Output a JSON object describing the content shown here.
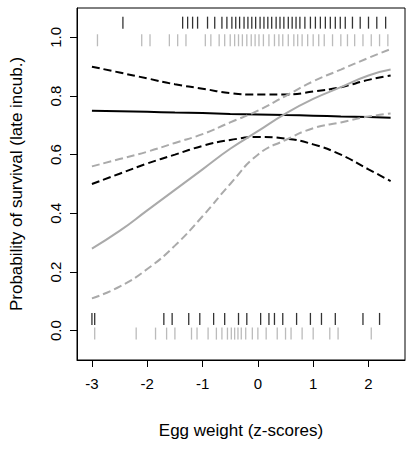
{
  "chart_data": {
    "type": "line",
    "x_label": "Egg weight (z-scores)",
    "y_label": "Probability of survival (late incub.)",
    "xlim": [
      -3.27,
      2.66
    ],
    "xticks": [
      -3,
      -2,
      -1,
      0,
      1,
      2
    ],
    "ylim": [
      -0.1,
      1.1
    ],
    "yticks": [
      {
        "value": 0,
        "label": "0.0"
      },
      {
        "value": 0.2,
        "label": "0.2"
      },
      {
        "value": 0.4,
        "label": "0.4"
      },
      {
        "value": 0.6,
        "label": "0.6"
      },
      {
        "value": 0.8,
        "label": "0.8"
      },
      {
        "value": 1,
        "label": "1.0"
      }
    ],
    "grid": false,
    "series": [
      {
        "type": "line",
        "color": "#000000",
        "line_style": "solid",
        "x": [
          -3,
          -2.5,
          -2,
          -1.5,
          -1,
          -0.5,
          0,
          0.5,
          1,
          1.5,
          2,
          2.4
        ],
        "values": [
          0.75,
          0.748,
          0.746,
          0.744,
          0.742,
          0.739,
          0.737,
          0.735,
          0.733,
          0.73,
          0.728,
          0.726
        ]
      },
      {
        "type": "line",
        "color": "#000000",
        "line_style": "dashed",
        "x": [
          -3,
          -2.5,
          -2,
          -1.5,
          -1,
          -0.5,
          0,
          0.5,
          1,
          1.5,
          2,
          2.4
        ],
        "values": [
          0.9,
          0.88,
          0.86,
          0.84,
          0.825,
          0.81,
          0.805,
          0.805,
          0.815,
          0.83,
          0.855,
          0.87
        ]
      },
      {
        "type": "line",
        "color": "#000000",
        "line_style": "dashed",
        "x": [
          -3,
          -2.5,
          -2,
          -1.5,
          -1,
          -0.5,
          0,
          0.5,
          1,
          1.5,
          2,
          2.4
        ],
        "values": [
          0.5,
          0.535,
          0.57,
          0.6,
          0.63,
          0.65,
          0.66,
          0.655,
          0.635,
          0.6,
          0.55,
          0.51
        ]
      },
      {
        "type": "line",
        "color": "#aaaaaa",
        "line_style": "solid",
        "x": [
          -3,
          -2.5,
          -2,
          -1.5,
          -1,
          -0.5,
          0,
          0.5,
          1,
          1.5,
          2,
          2.4
        ],
        "values": [
          0.28,
          0.34,
          0.41,
          0.48,
          0.55,
          0.62,
          0.68,
          0.74,
          0.79,
          0.83,
          0.87,
          0.89
        ]
      },
      {
        "type": "line",
        "color": "#aaaaaa",
        "line_style": "dashed",
        "x": [
          -3,
          -2.5,
          -2,
          -1.5,
          -1,
          -0.5,
          0,
          0.5,
          1,
          1.5,
          2,
          2.4
        ],
        "values": [
          0.56,
          0.585,
          0.61,
          0.64,
          0.67,
          0.71,
          0.75,
          0.8,
          0.85,
          0.89,
          0.93,
          0.96
        ]
      },
      {
        "type": "line",
        "color": "#aaaaaa",
        "line_style": "dashed",
        "x": [
          -3,
          -2.5,
          -2,
          -1.5,
          -1,
          -0.5,
          0,
          0.5,
          1,
          1.5,
          2,
          2.4
        ],
        "values": [
          0.11,
          0.15,
          0.21,
          0.29,
          0.39,
          0.5,
          0.6,
          0.65,
          0.69,
          0.71,
          0.73,
          0.74
        ]
      },
      {
        "type": "scatter",
        "color": "#000000",
        "marker": "vline",
        "x": [
          -2.44,
          -1.36,
          -1.27,
          -1.18,
          -1.09,
          -0.91,
          -0.78,
          -0.65,
          -0.56,
          -0.47,
          -0.4,
          -0.33,
          -0.25,
          -0.18,
          -0.11,
          -0.04,
          0.04,
          0.11,
          0.18,
          0.25,
          0.33,
          0.4,
          0.47,
          0.55,
          0.62,
          0.69,
          0.76,
          0.85,
          0.95,
          1.04,
          1.13,
          1.22,
          1.31,
          1.4,
          1.49,
          1.58,
          1.71,
          1.85,
          2.0,
          2.15,
          2.31
        ],
        "values": [
          1.05,
          1.05,
          1.05,
          1.05,
          1.05,
          1.05,
          1.05,
          1.05,
          1.05,
          1.05,
          1.05,
          1.05,
          1.05,
          1.05,
          1.05,
          1.05,
          1.05,
          1.05,
          1.05,
          1.05,
          1.05,
          1.05,
          1.05,
          1.05,
          1.05,
          1.05,
          1.05,
          1.05,
          1.05,
          1.05,
          1.05,
          1.05,
          1.05,
          1.05,
          1.05,
          1.05,
          1.05,
          1.05,
          1.05,
          1.05,
          1.05
        ]
      },
      {
        "type": "scatter",
        "color": "#aaaaaa",
        "marker": "vline",
        "x": [
          -2.9,
          -2.1,
          -1.95,
          -1.6,
          -1.45,
          -1.3,
          -0.95,
          -0.85,
          -0.7,
          -0.6,
          -0.5,
          -0.42,
          -0.35,
          -0.28,
          -0.2,
          -0.12,
          -0.05,
          0.02,
          0.1,
          0.2,
          0.3,
          0.38,
          0.45,
          0.55,
          0.65,
          0.72,
          0.8,
          0.9,
          1.0,
          1.1,
          1.2,
          1.35,
          1.5,
          1.62,
          1.75,
          1.9,
          2.05,
          2.2,
          2.35
        ],
        "values": [
          0.99,
          0.99,
          0.99,
          0.99,
          0.99,
          0.99,
          0.99,
          0.99,
          0.99,
          0.99,
          0.99,
          0.99,
          0.99,
          0.99,
          0.99,
          0.99,
          0.99,
          0.99,
          0.99,
          0.99,
          0.99,
          0.99,
          0.99,
          0.99,
          0.99,
          0.99,
          0.99,
          0.99,
          0.99,
          0.99,
          0.99,
          0.99,
          0.99,
          0.99,
          0.99,
          0.99,
          0.99,
          0.99,
          0.99
        ]
      },
      {
        "type": "scatter",
        "color": "#000000",
        "marker": "vline",
        "x": [
          -3.0,
          -2.95,
          -1.7,
          -1.55,
          -1.25,
          -1.05,
          -0.8,
          -0.6,
          -0.35,
          -0.2,
          0.05,
          0.2,
          0.3,
          0.45,
          0.7,
          0.95,
          1.15,
          1.4,
          1.9,
          2.2
        ],
        "values": [
          0.04,
          0.04,
          0.04,
          0.04,
          0.04,
          0.04,
          0.04,
          0.04,
          0.04,
          0.04,
          0.04,
          0.04,
          0.04,
          0.04,
          0.04,
          0.04,
          0.04,
          0.04,
          0.04,
          0.04
        ]
      },
      {
        "type": "scatter",
        "color": "#aaaaaa",
        "marker": "vline",
        "x": [
          -2.95,
          -2.2,
          -1.85,
          -1.65,
          -1.5,
          -1.2,
          -1.1,
          -0.9,
          -0.75,
          -0.65,
          -0.55,
          -0.48,
          -0.42,
          -0.36,
          -0.3,
          -0.22,
          -0.1,
          0.0,
          0.15,
          0.35,
          0.5,
          0.6,
          0.8,
          1.0,
          1.3,
          1.45,
          2.05
        ],
        "values": [
          -0.01,
          -0.01,
          -0.01,
          -0.01,
          -0.01,
          -0.01,
          -0.01,
          -0.01,
          -0.01,
          -0.01,
          -0.01,
          -0.01,
          -0.01,
          -0.01,
          -0.01,
          -0.01,
          -0.01,
          -0.01,
          -0.01,
          -0.01,
          -0.01,
          -0.01,
          -0.01,
          -0.01,
          -0.01,
          -0.01,
          -0.01
        ]
      }
    ]
  }
}
